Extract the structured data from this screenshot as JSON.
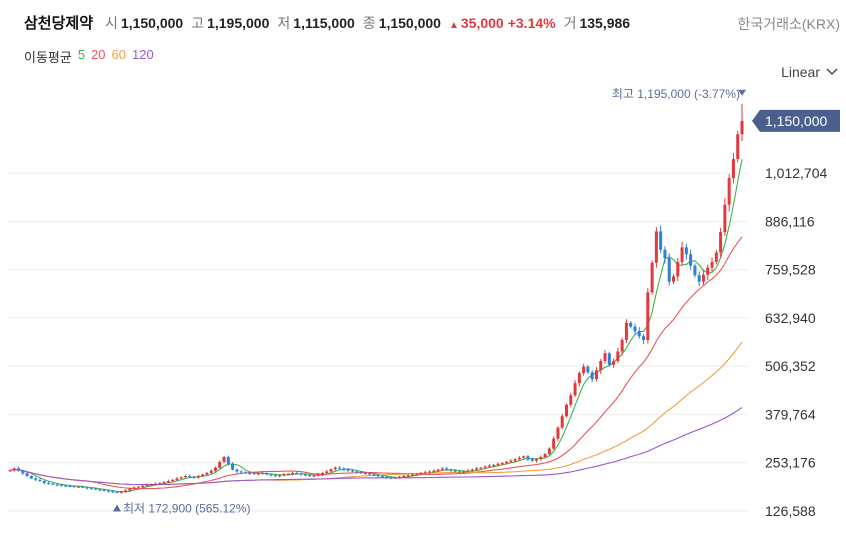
{
  "header": {
    "stock_name": "삼천당제약",
    "open_label": "시",
    "open_value": "1,150,000",
    "high_label": "고",
    "high_value": "1,195,000",
    "low_label": "저",
    "low_value": "1,115,000",
    "close_label": "종",
    "close_value": "1,150,000",
    "change_value": "35,000",
    "change_pct": "+3.14%",
    "volume_label": "거",
    "volume_value": "135,986",
    "exchange": "한국거래소(KRX)"
  },
  "moving_average": {
    "label": "이동평균",
    "periods": [
      {
        "value": "5",
        "color": "#3cb44b"
      },
      {
        "value": "20",
        "color": "#e8585c"
      },
      {
        "value": "60",
        "color": "#f0a040"
      },
      {
        "value": "120",
        "color": "#9b59d0"
      }
    ]
  },
  "scale_selector": {
    "label": "Linear"
  },
  "colors": {
    "up": "#e03a3e",
    "down": "#2f7ed8",
    "price_tag": "#4a5f8c",
    "annotation": "#5a6f9a",
    "grid": "#eeeeee"
  },
  "chart_data": {
    "type": "candlestick",
    "title": "",
    "ylim": [
      100000,
      1260000
    ],
    "y_ticks": [
      "1,012,704",
      "886,116",
      "759,528",
      "632,940",
      "506,352",
      "379,764",
      "253,176",
      "126,588"
    ],
    "y_tick_values": [
      1012704,
      886116,
      759528,
      632940,
      506352,
      379764,
      253176,
      126588
    ],
    "last_price_label": "1,150,000",
    "last_price": 1150000,
    "high_annotation": {
      "label": "최고",
      "value": "1,195,000 (-3.77%)",
      "price": 1195000
    },
    "low_annotation": {
      "label": "최저",
      "value": "172,900 (565.12%)",
      "price": 172900
    },
    "closes": [
      233000,
      238000,
      232000,
      225000,
      218000,
      212000,
      208000,
      205000,
      200000,
      198000,
      196000,
      194000,
      193000,
      192000,
      191000,
      190000,
      190000,
      188000,
      186000,
      185000,
      183000,
      181000,
      180000,
      178000,
      176000,
      174900,
      176000,
      180000,
      185000,
      188000,
      190000,
      192000,
      195000,
      196000,
      198000,
      200000,
      202000,
      205000,
      208000,
      212000,
      215000,
      218000,
      216000,
      214000,
      218000,
      222000,
      226000,
      232000,
      240000,
      255000,
      268000,
      250000,
      235000,
      230000,
      228000,
      226000,
      225000,
      224000,
      225000,
      226000,
      222000,
      220000,
      218000,
      220000,
      223000,
      224000,
      226000,
      225000,
      222000,
      220000,
      218000,
      219000,
      222000,
      226000,
      230000,
      236000,
      240000,
      238000,
      235000,
      232000,
      230000,
      228000,
      226000,
      225000,
      222000,
      220000,
      218000,
      215000,
      214000,
      212000,
      214000,
      216000,
      218000,
      220000,
      222000,
      224000,
      226000,
      228000,
      230000,
      232000,
      235000,
      238000,
      235000,
      232000,
      230000,
      228000,
      230000,
      232000,
      235000,
      238000,
      240000,
      243000,
      245000,
      247000,
      250000,
      252000,
      255000,
      258000,
      262000,
      266000,
      270000,
      262000,
      258000,
      262000,
      268000,
      276000,
      290000,
      316000,
      345000,
      375000,
      405000,
      430000,
      462000,
      488000,
      505000,
      490000,
      472000,
      495000,
      520000,
      540000,
      510000,
      520000,
      545000,
      575000,
      620000,
      610000,
      598000,
      585000,
      575000,
      700000,
      778000,
      860000,
      812000,
      790000,
      728000,
      742000,
      780000,
      818000,
      800000,
      770000,
      745000,
      728000,
      746000,
      765000,
      780000,
      805000,
      858000,
      930000,
      1000000,
      1050000,
      1115000,
      1150000
    ]
  }
}
